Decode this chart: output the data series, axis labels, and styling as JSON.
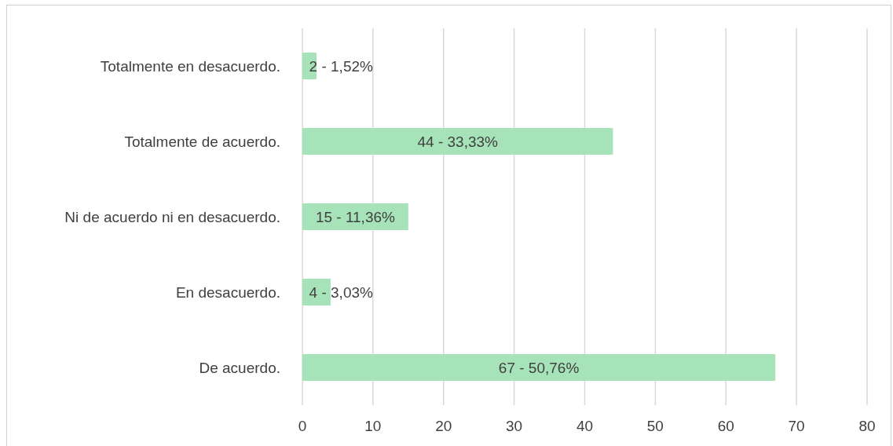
{
  "chart_data": {
    "type": "bar",
    "orientation": "horizontal",
    "categories": [
      "Totalmente en desacuerdo.",
      "Totalmente de acuerdo.",
      "Ni de acuerdo ni en desacuerdo.",
      "En desacuerdo.",
      "De acuerdo."
    ],
    "values": [
      2,
      44,
      15,
      4,
      67
    ],
    "value_labels": [
      "2 - 1,52%",
      "44 - 33,33%",
      "15 - 11,36%",
      "4 - 3,03%",
      "67 - 50,76%"
    ],
    "color": "#a6e3b9",
    "xlim": [
      0,
      80
    ],
    "xticks": [
      0,
      10,
      20,
      30,
      40,
      50,
      60,
      70,
      80
    ],
    "grid": "x"
  }
}
